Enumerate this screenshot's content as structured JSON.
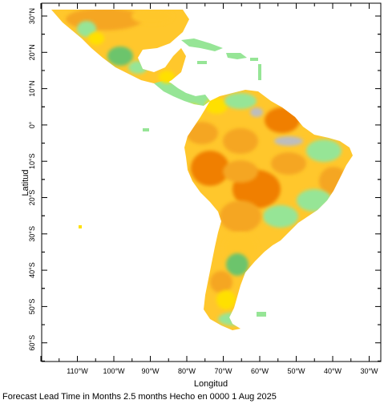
{
  "map": {
    "x_axis_title": "Longitud",
    "y_axis_title": "Latitud",
    "lon_tick_labels": [
      "110°W",
      "100°W",
      "90°W",
      "80°W",
      "70°W",
      "60°W",
      "50°W",
      "40°W",
      "30°W"
    ],
    "lat_tick_labels": [
      "30°N",
      "20°N",
      "10°N",
      "0°",
      "10°S",
      "20°S",
      "30°S",
      "40°S",
      "50°S",
      "60°S"
    ],
    "footer_text": "Forecast Lead Time in Months 2.5 months Hecho en 0000 1 Aug 2025",
    "colors": {
      "ocean": "#ffffff",
      "dark_orange": "#f07f00",
      "orange": "#f5a623",
      "light_orange": "#ffc72c",
      "yellow": "#ffe000",
      "light_green": "#96e596",
      "green": "#6cc46c",
      "grey": "#bdbdbd",
      "frame": "#000000"
    }
  }
}
